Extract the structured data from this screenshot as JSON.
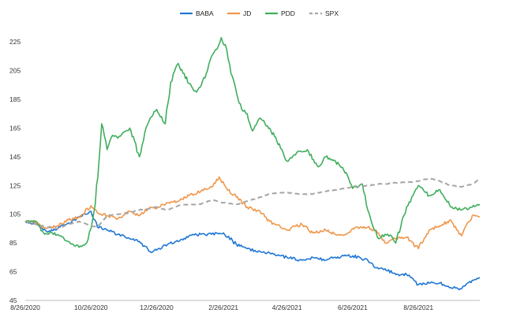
{
  "chart_data": {
    "type": "line",
    "title": "",
    "xlabel": "",
    "ylabel": "",
    "ylim": [
      45,
      235
    ],
    "yticks": [
      45,
      65,
      85,
      105,
      125,
      145,
      165,
      185,
      205,
      225
    ],
    "x_range": [
      "2020-08-26",
      "2021-10-22"
    ],
    "xticks": [
      {
        "date": "2020-08-26",
        "label": "8/26/2020"
      },
      {
        "date": "2020-10-26",
        "label": "10/26/2020"
      },
      {
        "date": "2020-12-26",
        "label": "12/26/2020"
      },
      {
        "date": "2021-02-26",
        "label": "2/26/2021"
      },
      {
        "date": "2021-04-26",
        "label": "4/26/2021"
      },
      {
        "date": "2021-06-26",
        "label": "6/26/2021"
      },
      {
        "date": "2021-08-26",
        "label": "8/26/2021"
      }
    ],
    "grid": false,
    "legend_position": "top-center",
    "series": [
      {
        "name": "BABA",
        "color": "#1f77d4",
        "dash": "solid",
        "x": [
          "2020-08-26",
          "2020-09-05",
          "2020-09-15",
          "2020-09-25",
          "2020-10-05",
          "2020-10-15",
          "2020-10-26",
          "2020-11-01",
          "2020-11-10",
          "2020-11-20",
          "2020-12-01",
          "2020-12-10",
          "2020-12-20",
          "2020-12-26",
          "2021-01-05",
          "2021-01-15",
          "2021-01-25",
          "2021-02-05",
          "2021-02-15",
          "2021-02-26",
          "2021-03-10",
          "2021-03-20",
          "2021-04-01",
          "2021-04-10",
          "2021-04-20",
          "2021-04-26",
          "2021-05-10",
          "2021-05-20",
          "2021-06-01",
          "2021-06-10",
          "2021-06-20",
          "2021-06-26",
          "2021-07-10",
          "2021-07-20",
          "2021-07-26",
          "2021-08-05",
          "2021-08-15",
          "2021-08-26",
          "2021-09-05",
          "2021-09-15",
          "2021-09-25",
          "2021-10-05",
          "2021-10-15",
          "2021-10-22"
        ],
        "y": [
          100,
          98,
          93,
          95,
          99,
          103,
          107,
          96,
          94,
          91,
          88,
          86,
          79,
          80,
          84,
          86,
          90,
          91,
          91,
          92,
          84,
          81,
          79,
          78,
          76,
          75,
          73,
          75,
          73,
          75,
          76,
          76,
          73,
          67,
          67,
          63,
          63,
          56,
          57,
          57,
          54,
          53,
          59,
          61
        ]
      },
      {
        "name": "JD",
        "color": "#f0964a",
        "dash": "solid",
        "x": [
          "2020-08-26",
          "2020-09-05",
          "2020-09-15",
          "2020-09-25",
          "2020-10-05",
          "2020-10-15",
          "2020-10-26",
          "2020-11-01",
          "2020-11-10",
          "2020-11-20",
          "2020-12-01",
          "2020-12-10",
          "2020-12-20",
          "2020-12-26",
          "2021-01-05",
          "2021-01-15",
          "2021-01-25",
          "2021-02-05",
          "2021-02-15",
          "2021-02-22",
          "2021-03-01",
          "2021-03-10",
          "2021-03-20",
          "2021-04-01",
          "2021-04-10",
          "2021-04-20",
          "2021-04-26",
          "2021-05-10",
          "2021-05-20",
          "2021-06-01",
          "2021-06-10",
          "2021-06-20",
          "2021-06-26",
          "2021-07-10",
          "2021-07-20",
          "2021-07-26",
          "2021-08-05",
          "2021-08-15",
          "2021-08-26",
          "2021-09-05",
          "2021-09-15",
          "2021-09-25",
          "2021-10-05",
          "2021-10-15",
          "2021-10-22"
        ],
        "y": [
          100,
          99,
          95,
          97,
          101,
          103,
          111,
          106,
          104,
          102,
          107,
          104,
          110,
          109,
          113,
          114,
          118,
          121,
          124,
          131,
          123,
          117,
          110,
          107,
          100,
          96,
          94,
          98,
          92,
          94,
          91,
          91,
          95,
          96,
          92,
          85,
          88,
          89,
          81,
          94,
          97,
          101,
          90,
          104,
          103
        ]
      },
      {
        "name": "PDD",
        "color": "#3fae5c",
        "dash": "solid",
        "x": [
          "2020-08-26",
          "2020-09-05",
          "2020-09-12",
          "2020-09-20",
          "2020-09-28",
          "2020-10-05",
          "2020-10-15",
          "2020-10-22",
          "2020-10-26",
          "2020-10-30",
          "2020-11-05",
          "2020-11-10",
          "2020-11-15",
          "2020-11-20",
          "2020-11-25",
          "2020-12-01",
          "2020-12-10",
          "2020-12-15",
          "2020-12-20",
          "2020-12-26",
          "2021-01-03",
          "2021-01-08",
          "2021-01-15",
          "2021-01-25",
          "2021-02-01",
          "2021-02-10",
          "2021-02-15",
          "2021-02-20",
          "2021-02-24",
          "2021-03-01",
          "2021-03-05",
          "2021-03-10",
          "2021-03-15",
          "2021-03-20",
          "2021-03-25",
          "2021-04-01",
          "2021-04-10",
          "2021-04-20",
          "2021-04-26",
          "2021-05-05",
          "2021-05-15",
          "2021-05-25",
          "2021-06-01",
          "2021-06-10",
          "2021-06-20",
          "2021-06-26",
          "2021-07-05",
          "2021-07-10",
          "2021-07-15",
          "2021-07-20",
          "2021-07-26",
          "2021-08-01",
          "2021-08-05",
          "2021-08-15",
          "2021-08-26",
          "2021-09-05",
          "2021-09-15",
          "2021-09-25",
          "2021-10-05",
          "2021-10-15",
          "2021-10-22"
        ],
        "y": [
          100,
          100,
          92,
          92,
          90,
          86,
          82,
          85,
          95,
          112,
          168,
          150,
          160,
          158,
          162,
          165,
          145,
          162,
          172,
          178,
          168,
          197,
          210,
          196,
          190,
          203,
          215,
          220,
          228,
          220,
          203,
          190,
          178,
          175,
          163,
          172,
          165,
          151,
          142,
          148,
          150,
          138,
          145,
          142,
          134,
          123,
          126,
          108,
          96,
          88,
          91,
          90,
          85,
          110,
          125,
          118,
          122,
          110,
          108,
          110,
          112
        ]
      },
      {
        "name": "SPX",
        "color": "#a6a6a6",
        "dash": "dashed",
        "x": [
          "2020-08-26",
          "2020-09-05",
          "2020-09-15",
          "2020-09-25",
          "2020-10-05",
          "2020-10-15",
          "2020-10-26",
          "2020-11-01",
          "2020-11-10",
          "2020-11-20",
          "2020-12-01",
          "2020-12-10",
          "2020-12-20",
          "2020-12-26",
          "2021-01-05",
          "2021-01-15",
          "2021-01-25",
          "2021-02-05",
          "2021-02-15",
          "2021-02-26",
          "2021-03-10",
          "2021-03-20",
          "2021-04-01",
          "2021-04-10",
          "2021-04-20",
          "2021-04-26",
          "2021-05-10",
          "2021-05-20",
          "2021-06-01",
          "2021-06-10",
          "2021-06-20",
          "2021-06-26",
          "2021-07-10",
          "2021-07-20",
          "2021-07-26",
          "2021-08-05",
          "2021-08-15",
          "2021-08-26",
          "2021-09-05",
          "2021-09-15",
          "2021-09-25",
          "2021-10-05",
          "2021-10-15",
          "2021-10-22"
        ],
        "y": [
          100,
          98,
          96,
          95,
          98,
          100,
          97,
          96,
          104,
          105,
          106,
          108,
          109,
          110,
          108,
          111,
          112,
          112,
          115,
          113,
          112,
          114,
          117,
          119,
          120,
          120,
          119,
          119,
          121,
          122,
          123,
          124,
          125,
          126,
          126,
          127,
          127,
          128,
          130,
          128,
          125,
          124,
          126,
          130
        ]
      }
    ]
  }
}
